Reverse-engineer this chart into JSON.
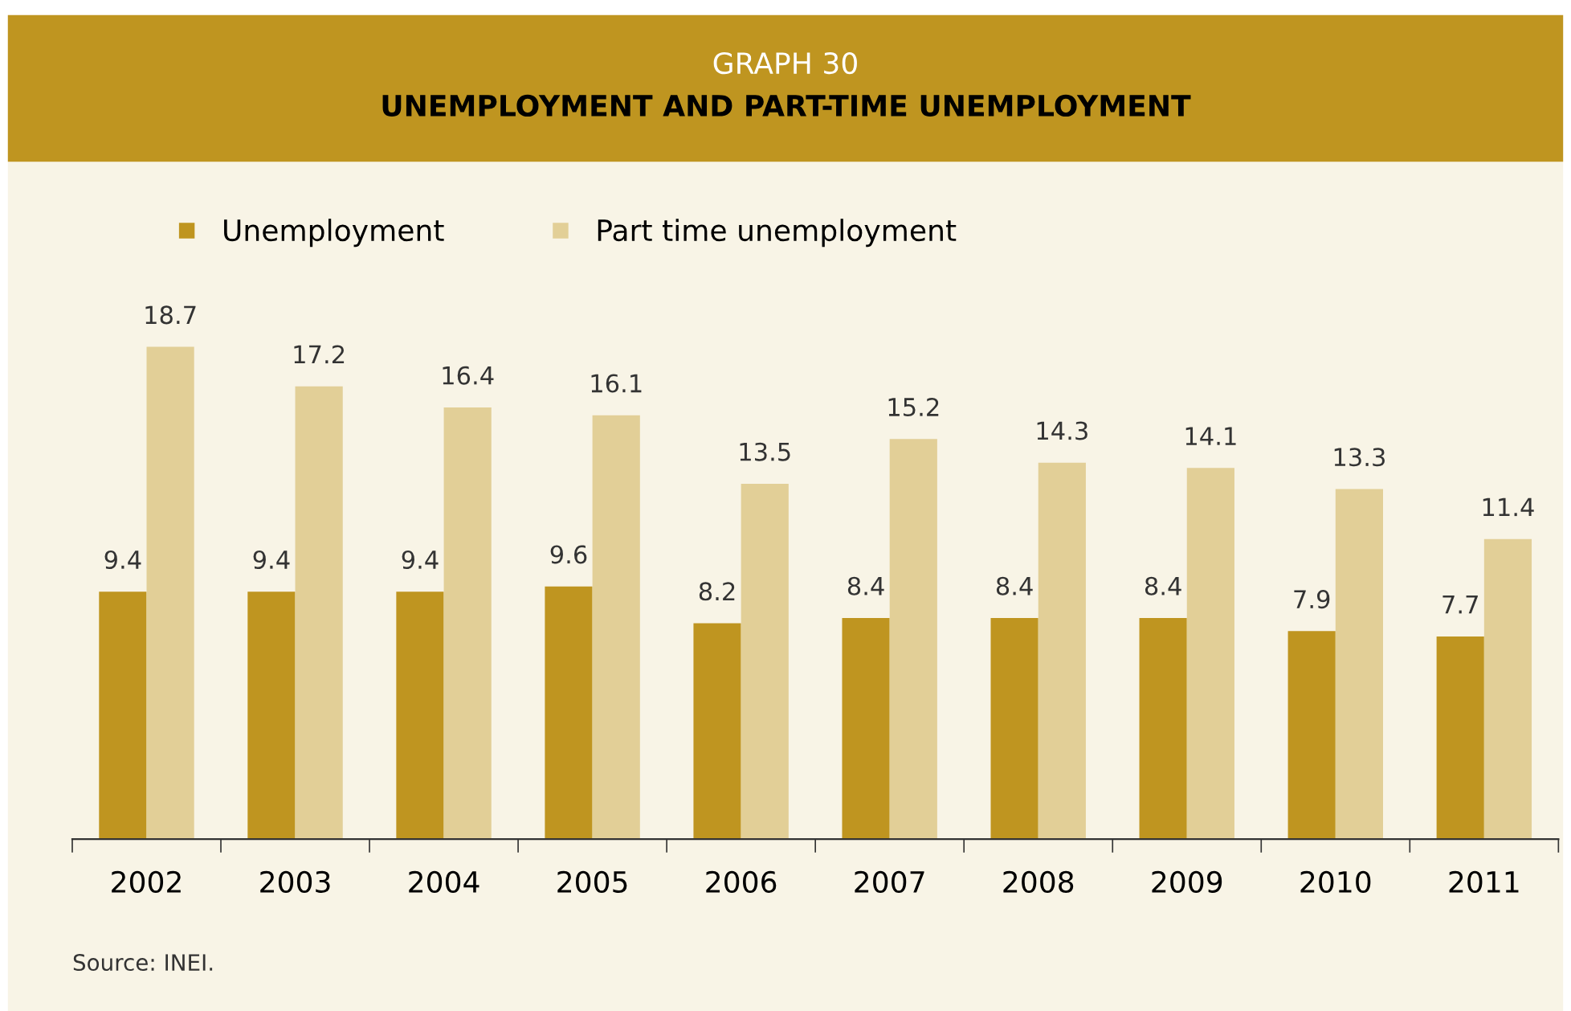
{
  "chart_data": {
    "type": "bar",
    "title": "GRAPH 30",
    "subtitle": "UNEMPLOYMENT AND PART-TIME UNEMPLOYMENT",
    "categories": [
      "2002",
      "2003",
      "2004",
      "2005",
      "2006",
      "2007",
      "2008",
      "2009",
      "2010",
      "2011"
    ],
    "series": [
      {
        "name": "Unemployment",
        "color": "#bf9520",
        "values": [
          9.4,
          9.4,
          9.4,
          9.6,
          8.2,
          8.4,
          8.4,
          8.4,
          7.9,
          7.7
        ]
      },
      {
        "name": "Part time unemployment",
        "color": "#e2cf97",
        "values": [
          18.7,
          17.2,
          16.4,
          16.1,
          13.5,
          15.2,
          14.3,
          14.1,
          13.3,
          11.4
        ]
      }
    ],
    "data_labels": true,
    "legend": "top left",
    "grid": false,
    "annotations": [
      "Source: INEI."
    ]
  }
}
